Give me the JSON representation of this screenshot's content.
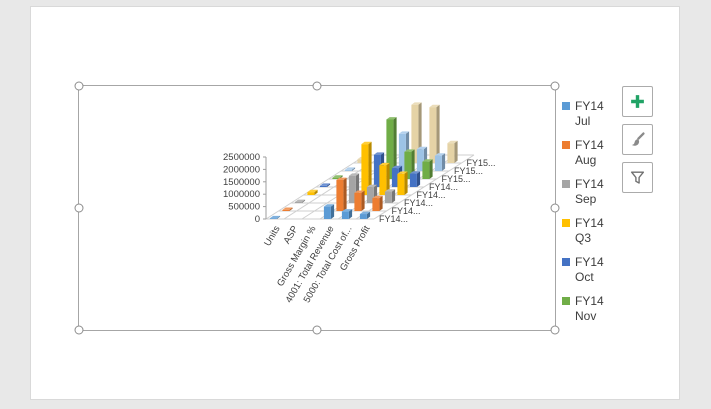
{
  "window": {
    "background_color": "#e8e8e8",
    "slide_color": "#ffffff"
  },
  "side_buttons": [
    {
      "icon": "plus-icon",
      "color": "#21a366"
    },
    {
      "icon": "paintbrush-icon",
      "color": "#8a8a8a"
    },
    {
      "icon": "funnel-icon",
      "color": "#6f6f6f"
    }
  ],
  "chart_data": {
    "type": "bar",
    "projection": "3d-column",
    "categories": [
      "Units",
      "ASP",
      "Gross Margin %",
      "4001: Total Revenue",
      "5000: Total Cost of...",
      "Gross Profit"
    ],
    "value_axis": {
      "min": 0,
      "max": 2500000,
      "step": 500000,
      "tick_labels": [
        "0",
        "500000",
        "1000000",
        "1500000",
        "2000000",
        "2500000"
      ]
    },
    "depth_axis_labels": [
      "FY14...",
      "FY14...",
      "FY14...",
      "FY14...",
      "FY14...",
      "FY15...",
      "FY15...",
      "FY15..."
    ],
    "series": [
      {
        "color": "#5b9bd5",
        "values": [
          30000,
          550,
          0.45,
          500000,
          300000,
          200000
        ]
      },
      {
        "color": "#ed7d31",
        "values": [
          45000,
          540,
          0.44,
          1250000,
          730000,
          520000
        ]
      },
      {
        "color": "#a5a5a5",
        "values": [
          40000,
          545,
          0.43,
          1100000,
          640000,
          460000
        ]
      },
      {
        "color": "#ffc000",
        "values": [
          115000,
          545,
          0.44,
          2050000,
          1200000,
          850000
        ]
      },
      {
        "color": "#4472c4",
        "values": [
          48000,
          540,
          0.44,
          1300000,
          760000,
          540000
        ]
      },
      {
        "color": "#70ad47",
        "values": [
          52000,
          540,
          0.45,
          2400000,
          1100000,
          700000
        ]
      },
      {
        "color": "#9dc3e6",
        "values": [
          50000,
          545,
          0.44,
          1500000,
          880000,
          620000
        ]
      },
      {
        "color": "#e5d3a6",
        "values": [
          150000,
          545,
          0.44,
          2350000,
          2250000,
          800000
        ]
      }
    ],
    "legend": {
      "position": "right",
      "entries": [
        {
          "year": "FY14",
          "period": "Jul",
          "color": "#5b9bd5"
        },
        {
          "year": "FY14",
          "period": "Aug",
          "color": "#ed7d31"
        },
        {
          "year": "FY14",
          "period": "Sep",
          "color": "#a5a5a5"
        },
        {
          "year": "FY14",
          "period": "Q3",
          "color": "#ffc000"
        },
        {
          "year": "FY14",
          "period": "Oct",
          "color": "#4472c4"
        },
        {
          "year": "FY14",
          "period": "Nov",
          "color": "#70ad47"
        }
      ]
    },
    "gridlines": true
  }
}
